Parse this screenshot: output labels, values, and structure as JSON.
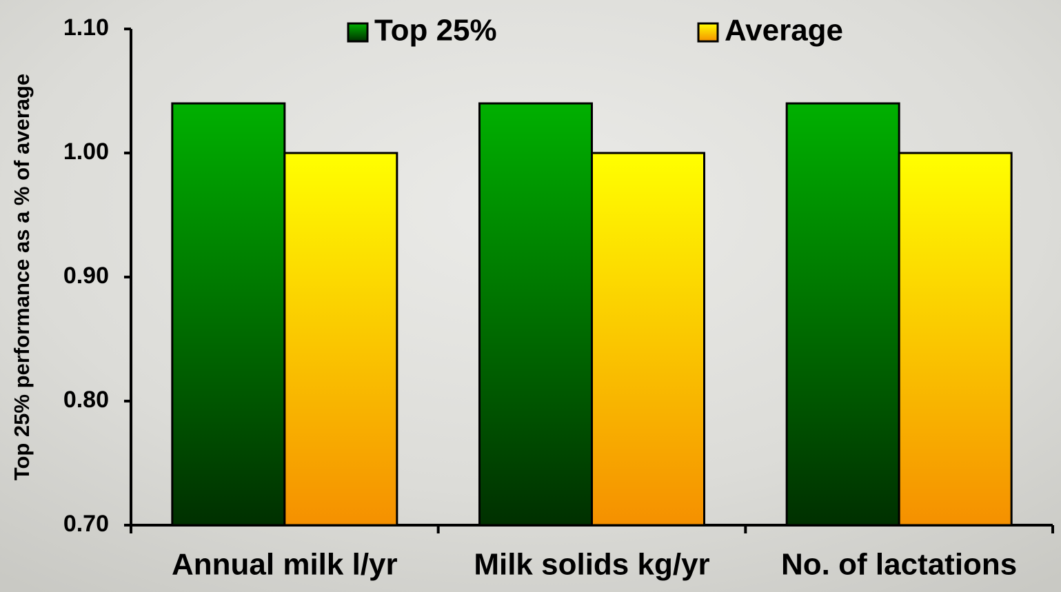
{
  "chart_data": {
    "type": "bar",
    "y_axis_label": "Top 25% performance as a % of average",
    "categories": [
      "Annual milk l/yr",
      "Milk solids kg/yr",
      "No. of lactations"
    ],
    "series": [
      {
        "name": "Top 25%",
        "color": "#00b000",
        "values": [
          1.04,
          1.04,
          1.04
        ]
      },
      {
        "name": "Average",
        "color": "#ffff00",
        "values": [
          1.0,
          1.0,
          1.0
        ]
      }
    ],
    "ylim": [
      0.7,
      1.1
    ],
    "yticks": [
      {
        "value": 0.7,
        "label": "0.70"
      },
      {
        "value": 0.8,
        "label": "0.80"
      },
      {
        "value": 0.9,
        "label": "0.90"
      },
      {
        "value": 1.0,
        "label": "1.00"
      },
      {
        "value": 1.1,
        "label": "1.10"
      }
    ],
    "grid": false
  }
}
